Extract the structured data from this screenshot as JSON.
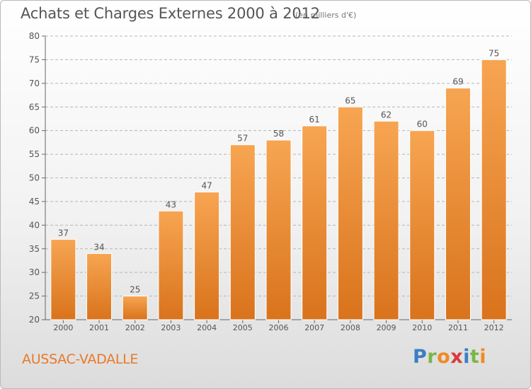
{
  "title": "Achats et Charges Externes 2000 à 2012",
  "subtitle": "(en milliers d'€)",
  "commune": "AUSSAC-VADALLE",
  "logo": {
    "letters": [
      "P",
      "r",
      "o",
      "x",
      "i",
      "t",
      "i"
    ],
    "colors": [
      "#3a7fc4",
      "#7ab648",
      "#f08a24",
      "#d93a3a",
      "#3a7fc4",
      "#7ab648",
      "#f08a24"
    ]
  },
  "colors": {
    "bar_top": "#f7a552",
    "bar_bottom": "#d9731c",
    "axis": "#666666",
    "grid": "#b5b5b5"
  },
  "chart_data": {
    "type": "bar",
    "categories": [
      "2000",
      "2001",
      "2002",
      "2003",
      "2004",
      "2005",
      "2006",
      "2007",
      "2008",
      "2009",
      "2010",
      "2011",
      "2012"
    ],
    "values": [
      37,
      34,
      25,
      43,
      47,
      57,
      58,
      61,
      65,
      62,
      60,
      69,
      75
    ],
    "ylim": [
      20,
      80
    ],
    "yticks": [
      20,
      25,
      30,
      35,
      40,
      45,
      50,
      55,
      60,
      65,
      70,
      75,
      80
    ],
    "grid": true,
    "data_labels": true
  }
}
